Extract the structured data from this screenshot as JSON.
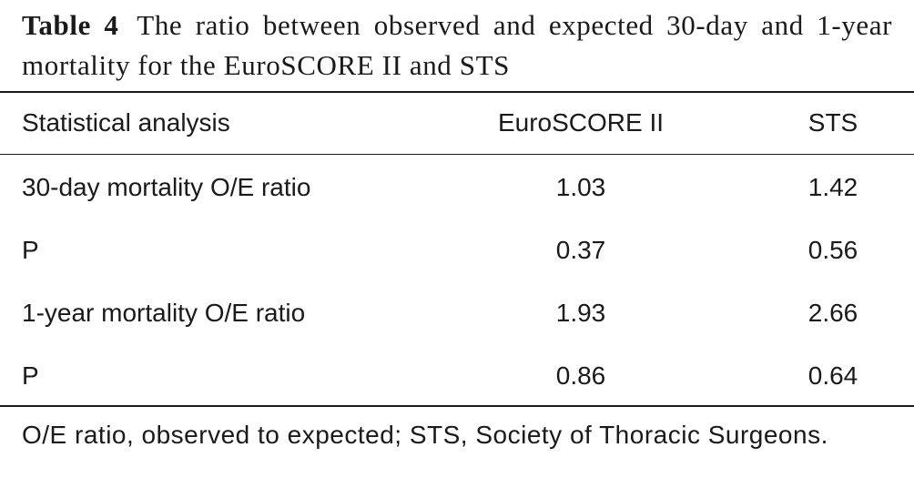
{
  "caption": {
    "label": "Table 4",
    "text": "The ratio between observed and expected 30-day and 1-year mortality for the EuroSCORE II and STS"
  },
  "table": {
    "header": [
      "Statistical analysis",
      "EuroSCORE II",
      "STS"
    ],
    "rows": [
      [
        "30-day mortality O/E ratio",
        "1.03",
        "1.42"
      ],
      [
        "P",
        "0.37",
        "0.56"
      ],
      [
        "1-year mortality O/E ratio",
        "1.93",
        "2.66"
      ],
      [
        "P",
        "0.86",
        "0.64"
      ]
    ]
  },
  "footnote": "O/E ratio, observed to expected; STS, Society of Thoracic Surgeons."
}
